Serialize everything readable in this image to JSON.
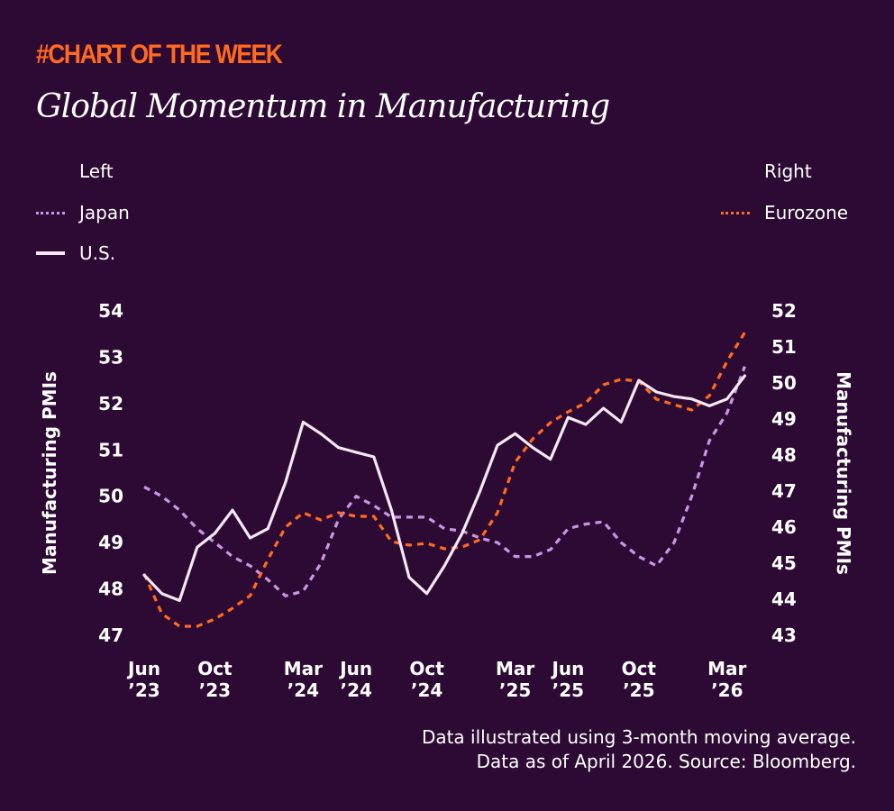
{
  "header": {
    "kicker": "#CHART OF THE WEEK",
    "title": "Global Momentum in Manufacturing"
  },
  "legend": {
    "left_heading": "Left",
    "right_heading": "Right",
    "japan": "Japan",
    "us": "U.S.",
    "eurozone": "Eurozone"
  },
  "footnote": {
    "line1": "Data illustrated using 3-month moving average.",
    "line2": "Data as of April 2026. Source: Bloomberg."
  },
  "colors": {
    "background": "#2d0a34",
    "us": "#f6e8f2",
    "japan": "#c996e6",
    "eurozone": "#ff6a1f",
    "kicker": "#ff6a1f"
  },
  "chart_data": {
    "type": "line",
    "xlabel": "",
    "ylabel_left": "Manufacturing PMIs",
    "ylabel_right": "Manufacturing PMIs",
    "ylim_left": [
      47,
      54
    ],
    "ylim_right": [
      43,
      52
    ],
    "yticks_left": [
      47,
      48,
      49,
      50,
      51,
      52,
      53,
      54
    ],
    "yticks_right": [
      43,
      44,
      45,
      46,
      47,
      48,
      49,
      50,
      51,
      52
    ],
    "x_tick_labels": [
      {
        "month": 0,
        "line1": "Jun",
        "line2": "’23"
      },
      {
        "month": 4,
        "line1": "Oct",
        "line2": "’23"
      },
      {
        "month": 9,
        "line1": "Mar",
        "line2": "’24"
      },
      {
        "month": 12,
        "line1": "Jun",
        "line2": "’24"
      },
      {
        "month": 16,
        "line1": "Oct",
        "line2": "’24"
      },
      {
        "month": 21,
        "line1": "Mar",
        "line2": "’25"
      },
      {
        "month": 24,
        "line1": "Jun",
        "line2": "’25"
      },
      {
        "month": 28,
        "line1": "Oct",
        "line2": "’25"
      },
      {
        "month": 33,
        "line1": "Mar",
        "line2": "’26"
      }
    ],
    "months": [
      "Jun 2023",
      "Jul 2023",
      "Aug 2023",
      "Sep 2023",
      "Oct 2023",
      "Nov 2023",
      "Dec 2023",
      "Jan 2024",
      "Feb 2024",
      "Mar 2024",
      "Apr 2024",
      "May 2024",
      "Jun 2024",
      "Jul 2024",
      "Aug 2024",
      "Sep 2024",
      "Oct 2024",
      "Nov 2024",
      "Dec 2024",
      "Jan 2025",
      "Feb 2025",
      "Mar 2025",
      "Apr 2025",
      "May 2025",
      "Jun 2025",
      "Jul 2025",
      "Aug 2025",
      "Sep 2025",
      "Oct 2025",
      "Nov 2025",
      "Dec 2025",
      "Jan 2026",
      "Feb 2026",
      "Mar 2026",
      "Apr 2026"
    ],
    "series": [
      {
        "name": "U.S.",
        "axis": "left",
        "style": "solid",
        "values": [
          48.3,
          47.9,
          47.75,
          48.9,
          49.2,
          49.7,
          49.1,
          49.3,
          50.3,
          51.6,
          51.35,
          51.05,
          50.95,
          50.85,
          49.7,
          48.25,
          47.9,
          48.5,
          49.2,
          50.1,
          51.1,
          51.35,
          51.05,
          50.8,
          51.7,
          51.55,
          51.9,
          51.6,
          52.5,
          52.25,
          52.15,
          52.1,
          51.95,
          52.1,
          52.6
        ]
      },
      {
        "name": "Japan",
        "axis": "left",
        "style": "dotted",
        "values": [
          50.2,
          50.0,
          49.7,
          49.3,
          49.0,
          48.7,
          48.5,
          48.2,
          47.85,
          47.95,
          48.55,
          49.5,
          50.0,
          49.8,
          49.55,
          49.55,
          49.55,
          49.3,
          49.25,
          49.1,
          49.0,
          48.7,
          48.7,
          48.85,
          49.3,
          49.4,
          49.45,
          49.0,
          48.7,
          48.5,
          49.0,
          50.0,
          51.2,
          51.8,
          52.8
        ]
      },
      {
        "name": "Eurozone",
        "axis": "right",
        "style": "dotted",
        "values": [
          44.7,
          43.6,
          43.25,
          43.25,
          43.45,
          43.75,
          44.1,
          45.1,
          46.0,
          46.4,
          46.2,
          46.4,
          46.3,
          46.3,
          45.6,
          45.5,
          45.55,
          45.4,
          45.45,
          45.65,
          46.4,
          47.8,
          48.45,
          48.9,
          49.2,
          49.45,
          49.95,
          50.1,
          50.05,
          49.55,
          49.4,
          49.25,
          49.65,
          50.6,
          51.4
        ]
      }
    ]
  }
}
